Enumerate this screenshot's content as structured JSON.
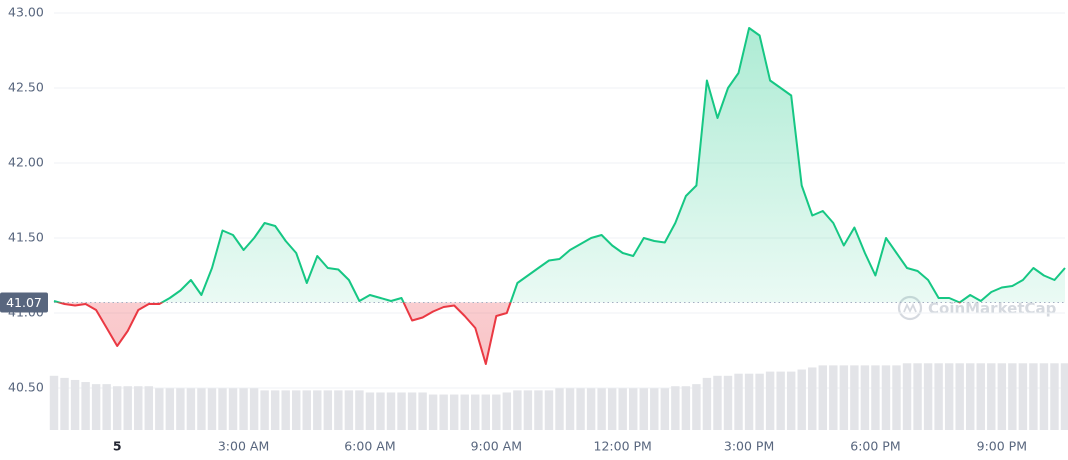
{
  "chart_data": {
    "type": "line",
    "categories": [
      null,
      null,
      null,
      null,
      null,
      null,
      "5",
      null,
      null,
      null,
      null,
      null,
      null,
      null,
      null,
      null,
      null,
      null,
      "3:00 AM",
      null,
      null,
      null,
      null,
      null,
      null,
      null,
      null,
      null,
      null,
      null,
      "6:00 AM",
      null,
      null,
      null,
      null,
      null,
      null,
      null,
      null,
      null,
      null,
      null,
      "9:00 AM",
      null,
      null,
      null,
      null,
      null,
      null,
      null,
      null,
      null,
      null,
      null,
      "12:00 PM",
      null,
      null,
      null,
      null,
      null,
      null,
      null,
      null,
      null,
      null,
      null,
      "3:00 PM",
      null,
      null,
      null,
      null,
      null,
      null,
      null,
      null,
      null,
      null,
      null,
      "6:00 PM",
      null,
      null,
      null,
      null,
      null,
      null,
      null,
      null,
      null,
      null,
      null,
      "9:00 PM",
      null,
      null,
      null,
      null,
      null,
      null
    ],
    "series": [
      {
        "color": "#16c784",
        "below_color": "#ea3943",
        "values": [
          41.08,
          41.06,
          41.05,
          41.06,
          41.02,
          40.9,
          40.78,
          40.88,
          41.02,
          41.06,
          41.06,
          41.1,
          41.15,
          41.22,
          41.12,
          41.3,
          41.55,
          41.52,
          41.42,
          41.5,
          41.6,
          41.58,
          41.48,
          41.4,
          41.2,
          41.38,
          41.3,
          41.29,
          41.22,
          41.08,
          41.12,
          41.1,
          41.08,
          41.1,
          40.95,
          40.97,
          41.01,
          41.04,
          41.05,
          40.98,
          40.9,
          40.66,
          40.98,
          41.0,
          41.2,
          41.25,
          41.3,
          41.35,
          41.36,
          41.42,
          41.46,
          41.5,
          41.52,
          41.45,
          41.4,
          41.38,
          41.5,
          41.48,
          41.47,
          41.6,
          41.78,
          41.85,
          42.55,
          42.3,
          42.5,
          42.6,
          42.9,
          42.85,
          42.55,
          42.5,
          42.45,
          41.85,
          41.65,
          41.68,
          41.6,
          41.45,
          41.57,
          41.4,
          41.25,
          41.5,
          41.4,
          41.3,
          41.28,
          41.22,
          41.1,
          41.1,
          41.07,
          41.12,
          41.08,
          41.14,
          41.17,
          41.18,
          41.22,
          41.3,
          41.25,
          41.22,
          41.3
        ]
      }
    ],
    "volume": {
      "color": "#e3e4e8",
      "values": [
        26,
        25,
        24,
        23,
        22,
        22,
        21,
        21,
        21,
        21,
        20,
        20,
        20,
        20,
        20,
        20,
        20,
        20,
        20,
        20,
        19,
        19,
        19,
        19,
        19,
        19,
        19,
        19,
        19,
        19,
        18,
        18,
        18,
        18,
        18,
        18,
        17,
        17,
        17,
        17,
        17,
        17,
        17,
        18,
        19,
        19,
        19,
        19,
        20,
        20,
        20,
        20,
        20,
        20,
        20,
        20,
        20,
        20,
        20,
        21,
        21,
        22,
        25,
        26,
        26,
        27,
        27,
        27,
        28,
        28,
        28,
        29,
        30,
        31,
        31,
        31,
        31,
        31,
        31,
        31,
        31,
        32,
        32,
        32,
        32,
        32,
        32,
        32,
        32,
        32,
        32,
        32,
        32,
        32,
        32,
        32,
        32
      ]
    },
    "y2lim": [
      0,
      200
    ],
    "reference_price": 41.07,
    "ylim": [
      40.22,
      43.0
    ],
    "yticks": [
      {
        "value": 40.5,
        "label": "40.50"
      },
      {
        "value": 41,
        "label": "41.00"
      },
      {
        "value": 41.5,
        "label": "41.50"
      },
      {
        "value": 42,
        "label": "42.00"
      },
      {
        "value": 42.5,
        "label": "42.50"
      },
      {
        "value": 43,
        "label": "43.00"
      }
    ],
    "grid": true,
    "watermark": "CoinMarketCap"
  }
}
